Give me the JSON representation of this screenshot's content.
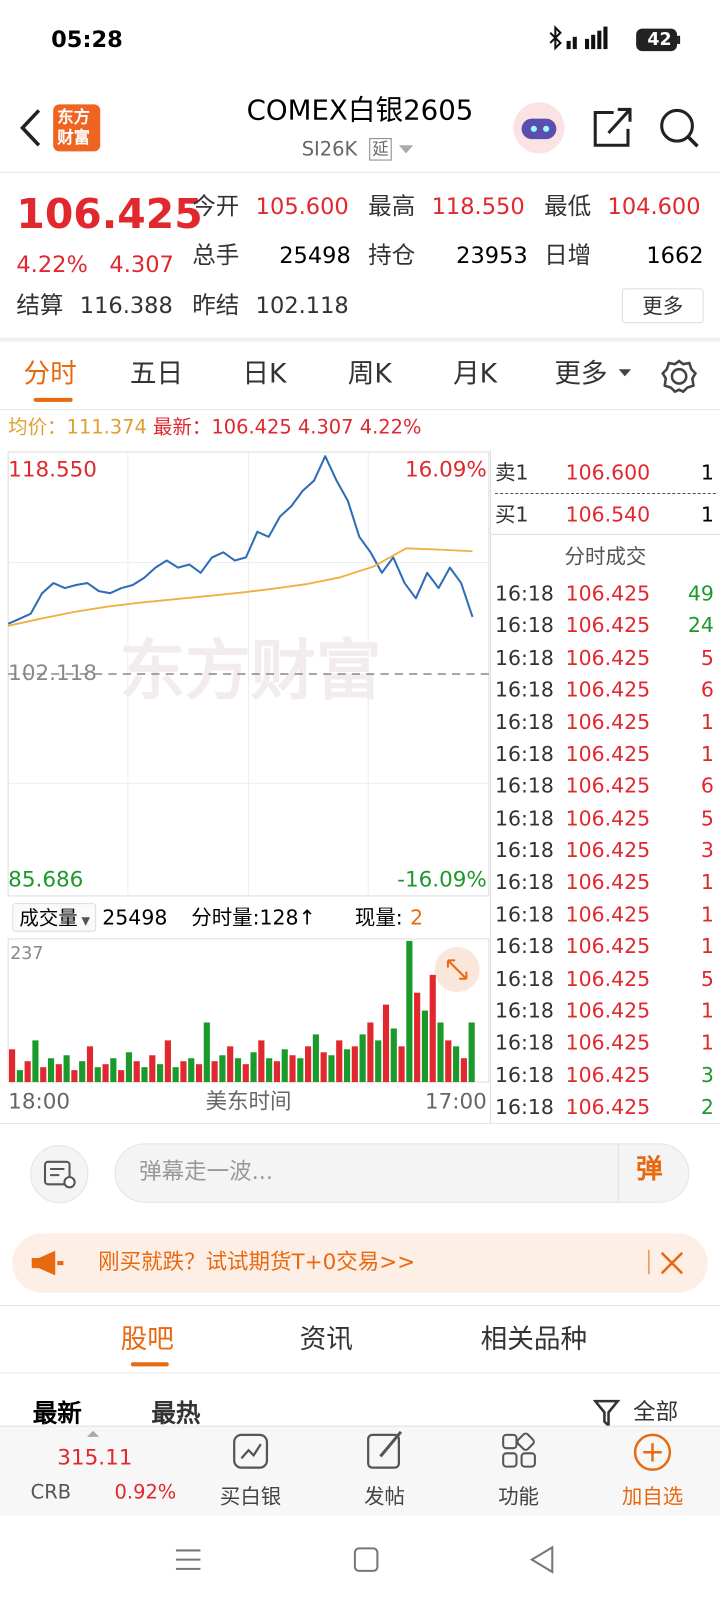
{
  "status_bar": {
    "time": "05:28",
    "battery": "42"
  },
  "header": {
    "logo_lines": [
      "东方",
      "财富"
    ],
    "title": "COMEX白银2605",
    "subtitle": "SI26K",
    "tag": "延"
  },
  "quote": {
    "price": "106.425",
    "change_pct": "4.22%",
    "change": "4.307",
    "fields": [
      {
        "label": "今开",
        "value": "105.600"
      },
      {
        "label": "最高",
        "value": "118.550"
      },
      {
        "label": "最低",
        "value": "104.600"
      },
      {
        "label": "总手",
        "value": "25498"
      },
      {
        "label": "持仓",
        "value": "23953"
      },
      {
        "label": "日增",
        "value": "1662"
      },
      {
        "label": "结算",
        "value": "116.388"
      },
      {
        "label": "昨结",
        "value": "102.118"
      }
    ],
    "more_button": "更多"
  },
  "tabs": {
    "items": [
      "分时",
      "五日",
      "日K",
      "周K",
      "月K",
      "更多"
    ],
    "active": 0
  },
  "info_line": {
    "avg_label": "均价：",
    "avg": "111.374",
    "latest_label": "最新：",
    "latest": "106.425",
    "change": "4.307",
    "pct": "4.22%"
  },
  "chart_data": [
    {
      "type": "line",
      "watermark": "东方财富",
      "series": [
        {
          "color": "#2f6db5",
          "values": [
            105.9,
            106.28,
            106.67,
            108.21,
            108.98,
            108.6,
            108.83,
            108.98,
            108.37,
            108.21,
            108.6,
            108.83,
            109.37,
            110.14,
            110.68,
            110.14,
            110.37,
            109.75,
            110.91,
            111.3,
            110.68,
            110.91,
            112.84,
            112.46,
            114.0,
            114.77,
            115.93,
            116.7,
            118.55,
            116.7,
            115.16,
            112.46,
            111.3,
            109.75,
            110.91,
            108.98,
            107.83,
            109.75,
            108.6,
            110.14,
            108.98,
            106.425
          ]
        },
        {
          "color": "#f0b040",
          "values": [
            105.75,
            106.3,
            106.8,
            107.2,
            107.5,
            107.75,
            108.0,
            108.25,
            108.55,
            108.9,
            109.4,
            110.2,
            111.6,
            111.5,
            111.374
          ]
        }
      ],
      "ylim": [
        85.686,
        118.55
      ],
      "yticks": [
        {
          "value": 118.55,
          "label": "118.550"
        },
        102.118,
        85.686
      ],
      "y2lim": [
        -16.09,
        16.09
      ],
      "y2ticks": [
        {
          "value": 16.09,
          "label": "16.09%"
        },
        {
          "value": -16.09,
          "label": "-16.09%"
        }
      ],
      "grid": true
    },
    {
      "type": "bar",
      "ylim": [
        0,
        237
      ],
      "yticks": [
        237
      ],
      "colors": [
        "#e0282e",
        "#1a9a2a"
      ],
      "values": [
        55,
        20,
        35,
        70,
        25,
        40,
        30,
        45,
        20,
        35,
        60,
        25,
        30,
        40,
        20,
        50,
        35,
        25,
        45,
        30,
        70,
        25,
        35,
        40,
        30,
        100,
        35,
        45,
        60,
        40,
        30,
        50,
        70,
        40,
        35,
        55,
        45,
        40,
        60,
        80,
        50,
        45,
        70,
        55,
        60,
        80,
        100,
        70,
        130,
        90,
        60,
        237,
        150,
        120,
        180,
        100,
        70,
        60,
        40,
        100
      ],
      "x_labels": [
        "18:00",
        "17:00"
      ],
      "xlabel": "美东时间"
    }
  ],
  "volume_header": {
    "selector": "成交量",
    "total": "25498",
    "period": "分时量:128↑",
    "current_label": "现量:",
    "current": "2"
  },
  "order_book": {
    "ask": {
      "label": "卖1",
      "price": "106.600",
      "qty": "1"
    },
    "bid": {
      "label": "买1",
      "price": "106.540",
      "qty": "1"
    }
  },
  "trades": {
    "title": "分时成交",
    "rows": [
      {
        "time": "16:18",
        "price": "106.425",
        "qty": "49",
        "color": "#1a9a2a"
      },
      {
        "time": "16:18",
        "price": "106.425",
        "qty": "24",
        "color": "#1a9a2a"
      },
      {
        "time": "16:18",
        "price": "106.425",
        "qty": "5",
        "color": "#e0282e"
      },
      {
        "time": "16:18",
        "price": "106.425",
        "qty": "6",
        "color": "#e0282e"
      },
      {
        "time": "16:18",
        "price": "106.425",
        "qty": "1",
        "color": "#e0282e"
      },
      {
        "time": "16:18",
        "price": "106.425",
        "qty": "1",
        "color": "#e0282e"
      },
      {
        "time": "16:18",
        "price": "106.425",
        "qty": "6",
        "color": "#e0282e"
      },
      {
        "time": "16:18",
        "price": "106.425",
        "qty": "5",
        "color": "#e0282e"
      },
      {
        "time": "16:18",
        "price": "106.425",
        "qty": "3",
        "color": "#e0282e"
      },
      {
        "time": "16:18",
        "price": "106.425",
        "qty": "1",
        "color": "#e0282e"
      },
      {
        "time": "16:18",
        "price": "106.425",
        "qty": "1",
        "color": "#e0282e"
      },
      {
        "time": "16:18",
        "price": "106.425",
        "qty": "1",
        "color": "#e0282e"
      },
      {
        "time": "16:18",
        "price": "106.425",
        "qty": "5",
        "color": "#e0282e"
      },
      {
        "time": "16:18",
        "price": "106.425",
        "qty": "1",
        "color": "#e0282e"
      },
      {
        "time": "16:18",
        "price": "106.425",
        "qty": "1",
        "color": "#e0282e"
      },
      {
        "time": "16:18",
        "price": "106.425",
        "qty": "3",
        "color": "#1a9a2a"
      },
      {
        "time": "16:18",
        "price": "106.425",
        "qty": "2",
        "color": "#1a9a2a"
      }
    ]
  },
  "comment_bar": {
    "placeholder": "弹幕走一波...",
    "button": "弹"
  },
  "banner": {
    "text": "刚买就跌？试试期货T+0交易>>"
  },
  "content_tabs": {
    "items": [
      "股吧",
      "资讯",
      "相关品种"
    ],
    "active": 0
  },
  "sort_bar": {
    "latest": "最新",
    "hot": "最热",
    "filter": "全部"
  },
  "bottom_nav": {
    "index_value": "315.11",
    "index_name": "CRB",
    "index_pct": "0.92%",
    "items": [
      "买白银",
      "发帖",
      "功能",
      "加自选"
    ]
  }
}
